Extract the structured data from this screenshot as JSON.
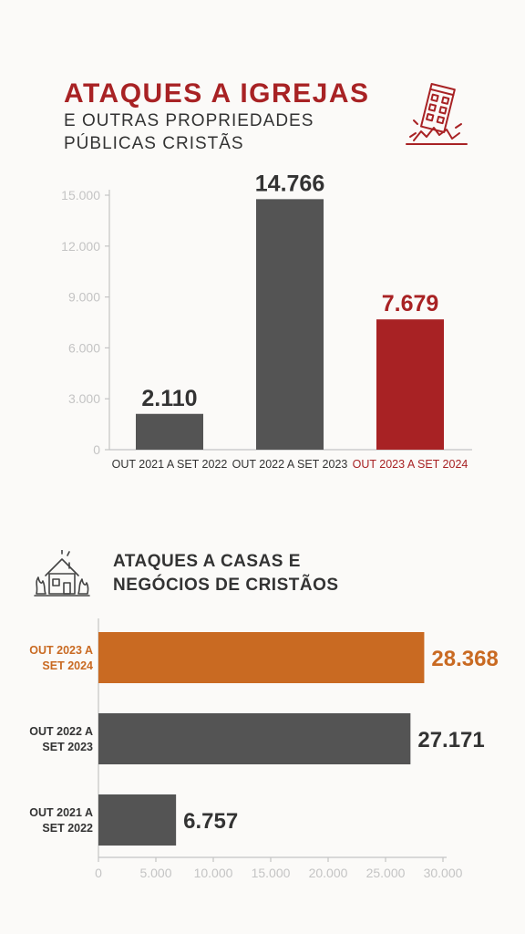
{
  "header": {
    "title": "ATAQUES A IGREJAS",
    "subtitle_line1": "E OUTRAS PROPRIEDADES",
    "subtitle_line2": "PÚBLICAS CRISTÃS"
  },
  "section2": {
    "title_line1": "ATAQUES A CASAS E",
    "title_line2": "NEGÓCIOS DE CRISTÃOS"
  },
  "icons": {
    "top": "collapsing-building-icon",
    "bottom": "burning-house-icon"
  },
  "colors": {
    "gray_bar": "#545454",
    "highlight_red": "#a82224",
    "highlight_orange": "#c96a22",
    "axis_text": "#c4c4c4",
    "label_text": "#333333"
  },
  "chart_data": [
    {
      "type": "bar",
      "orientation": "vertical",
      "categories": [
        "OUT 2021 A SET 2022",
        "OUT 2022 A SET 2023",
        "OUT 2023 A SET 2024"
      ],
      "values": [
        2110,
        14766,
        7679
      ],
      "value_labels": [
        "2.110",
        "14.766",
        "7.679"
      ],
      "ylim": [
        0,
        15000
      ],
      "y_ticks": [
        0,
        3000,
        6000,
        9000,
        12000,
        15000
      ],
      "y_tick_labels": [
        "0",
        "3.000",
        "6.000",
        "9.000",
        "12.000",
        "15.000"
      ],
      "highlight_index": 2,
      "grid": false
    },
    {
      "type": "bar",
      "orientation": "horizontal",
      "categories": [
        [
          "OUT 2023 A",
          "SET 2024"
        ],
        [
          "OUT 2022 A",
          "SET 2023"
        ],
        [
          "OUT 2021 A",
          "SET 2022"
        ]
      ],
      "values": [
        28368,
        27171,
        6757
      ],
      "value_labels": [
        "28.368",
        "27.171",
        "6.757"
      ],
      "xlim": [
        0,
        30000
      ],
      "x_ticks": [
        0,
        5000,
        10000,
        15000,
        20000,
        25000,
        30000
      ],
      "x_tick_labels": [
        "0",
        "5.000",
        "10.000",
        "15.000",
        "20.000",
        "25.000",
        "30.000"
      ],
      "highlight_index": 0,
      "grid": false
    }
  ]
}
